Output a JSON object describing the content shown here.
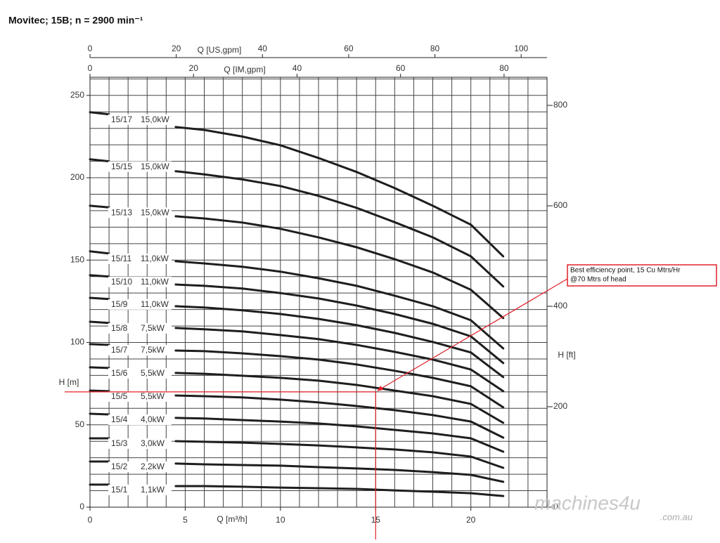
{
  "chart_data": {
    "type": "line",
    "title": "Movitec; 15B; n = 2900 min⁻¹",
    "xlabel": "Q [m³/h]",
    "ylabel": "H [m]",
    "y2label": "H [ft]",
    "xlim": [
      0,
      24
    ],
    "xticks": [
      0,
      5,
      10,
      15,
      20
    ],
    "ylim": [
      0,
      261
    ],
    "yticks": [
      0,
      50,
      100,
      150,
      200,
      250
    ],
    "y2lim": [
      0,
      856
    ],
    "y2ticks": [
      0,
      200,
      400,
      600,
      800
    ],
    "grid": true,
    "minor_grid": {
      "x": 1,
      "y": 10
    },
    "top_axes": [
      {
        "label": "Q [US,gpm]",
        "lim": [
          0,
          106
        ],
        "ticks": [
          0,
          20,
          40,
          60,
          80,
          100
        ]
      },
      {
        "label": "Q [IM,gpm]",
        "lim": [
          0,
          88.3
        ],
        "ticks": [
          0,
          20,
          40,
          60,
          80
        ]
      }
    ],
    "color": "#1e1e1e",
    "x": [
      0,
      1,
      2,
      4.5,
      6,
      8,
      10,
      12,
      14,
      16,
      18,
      20,
      21.7
    ],
    "series": [
      {
        "name": "15/17",
        "power": "15,0kW",
        "values": [
          239.8,
          238.5,
          null,
          230.8,
          229,
          225,
          219.7,
          212,
          203.5,
          193.7,
          183,
          171.5,
          152.3
        ]
      },
      {
        "name": "15/15",
        "power": "15,0kW",
        "values": [
          211.2,
          210,
          null,
          204,
          202,
          199,
          195,
          189,
          181.7,
          173,
          163.8,
          152.3,
          134
        ]
      },
      {
        "name": "15/13",
        "power": "15,0kW",
        "values": [
          183,
          182,
          null,
          176.6,
          175.3,
          172.8,
          169,
          163.8,
          157.8,
          150.6,
          142.5,
          132,
          114.8
        ]
      },
      {
        "name": "15/11",
        "power": "11,0kW",
        "values": [
          155.3,
          154,
          null,
          149.3,
          148,
          146,
          143,
          139,
          134.4,
          128.4,
          122,
          113.5,
          96.4
        ]
      },
      {
        "name": "15/10",
        "power": "11,0kW",
        "values": [
          140.8,
          140,
          null,
          135.2,
          134.4,
          132.7,
          130,
          126.7,
          122.4,
          117.3,
          111.3,
          103.7,
          87.5
        ]
      },
      {
        "name": "15/9",
        "power": "11,0kW",
        "values": [
          127.1,
          126.3,
          null,
          122,
          121.2,
          119.5,
          117.3,
          114.3,
          110.5,
          105.8,
          100.3,
          93.9,
          79
        ]
      },
      {
        "name": "15/8",
        "power": "7,5kW",
        "values": [
          112.6,
          111.8,
          null,
          108.8,
          108,
          106.7,
          104.5,
          102,
          98.5,
          94.3,
          89.6,
          83.6,
          70.4
        ]
      },
      {
        "name": "15/7",
        "power": "7,5kW",
        "values": [
          99,
          98.5,
          null,
          95.1,
          94.7,
          93.4,
          91.7,
          89.6,
          86.6,
          82.8,
          78.5,
          73.4,
          60.6
        ]
      },
      {
        "name": "15/6",
        "power": "5,5kW",
        "values": [
          84.9,
          84.5,
          null,
          81.5,
          81,
          79.8,
          78.5,
          76.8,
          74.2,
          70.8,
          67.4,
          62.7,
          51.2
        ]
      },
      {
        "name": "15/5",
        "power": "5,5kW",
        "values": [
          70.8,
          70.4,
          null,
          67.8,
          67.4,
          66.6,
          65.3,
          63.6,
          61.4,
          58.9,
          55.9,
          52,
          42.2
        ]
      },
      {
        "name": "15/4",
        "power": "4,0kW",
        "values": [
          56.7,
          56.3,
          null,
          54.2,
          53.8,
          52.9,
          52,
          50.8,
          49.1,
          46.9,
          44.8,
          41.8,
          33.7
        ]
      },
      {
        "name": "15/3",
        "power": "3,0kW",
        "values": [
          41.8,
          41.8,
          null,
          40.1,
          39.7,
          39.2,
          38.4,
          37.5,
          36.3,
          35,
          33.3,
          30.7,
          23.9
        ]
      },
      {
        "name": "15/2",
        "power": "2,2kW",
        "values": [
          27.7,
          27.7,
          null,
          26.5,
          26,
          25.6,
          25.2,
          24.3,
          23.5,
          22.6,
          21.3,
          19.6,
          15.4
        ]
      },
      {
        "name": "15/1",
        "power": "1,1kW",
        "values": [
          13.7,
          13.7,
          null,
          12.8,
          12.8,
          12.4,
          11.9,
          11.5,
          11.1,
          10.2,
          9.4,
          8.5,
          6.8
        ]
      }
    ],
    "annotation": {
      "text": [
        "Best efficiency point, 15 Cu Mtrs/Hr",
        "@70 Mtrs of head"
      ],
      "x": 15,
      "y": 70,
      "color": "#e0202a"
    },
    "watermark": [
      "machines4u",
      ".com.au"
    ]
  }
}
